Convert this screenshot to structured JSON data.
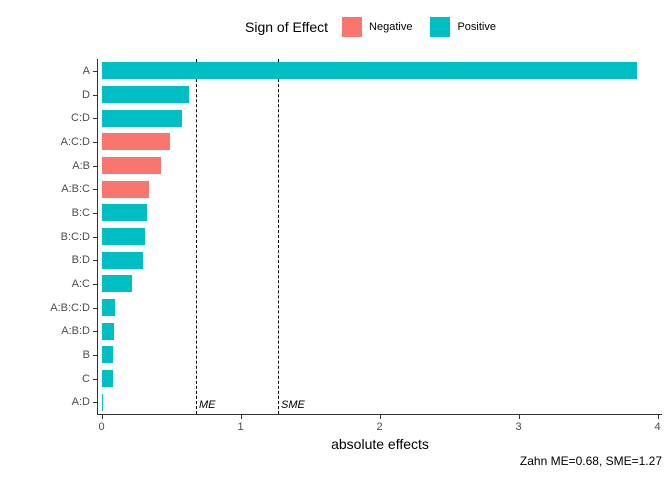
{
  "legend": {
    "title": "Sign of Effect",
    "items": [
      {
        "label": "Negative",
        "color": "#F8766D"
      },
      {
        "label": "Positive",
        "color": "#00BFC4"
      }
    ]
  },
  "chart_data": {
    "type": "bar",
    "orientation": "horizontal",
    "title": "",
    "xlabel": "absolute effects",
    "ylabel": "",
    "xlim": [
      0,
      4
    ],
    "x_ticks": [
      0,
      1,
      2,
      3,
      4
    ],
    "grid": false,
    "legend_position": "top",
    "categories": [
      "A",
      "D",
      "C:D",
      "A:C:D",
      "A:B",
      "A:B:C",
      "B:C",
      "B:C:D",
      "B:D",
      "A:C",
      "A:B:C:D",
      "A:B:D",
      "B",
      "C",
      "A:D"
    ],
    "series": [
      {
        "name": "absolute effect",
        "values": [
          3.85,
          0.63,
          0.58,
          0.49,
          0.43,
          0.34,
          0.33,
          0.31,
          0.3,
          0.22,
          0.1,
          0.09,
          0.08,
          0.08,
          0.01
        ],
        "signs": [
          "Positive",
          "Positive",
          "Positive",
          "Negative",
          "Negative",
          "Negative",
          "Positive",
          "Positive",
          "Positive",
          "Positive",
          "Positive",
          "Positive",
          "Positive",
          "Positive",
          "Positive"
        ]
      }
    ],
    "reference_lines": [
      {
        "label": "ME",
        "x": 0.68
      },
      {
        "label": "SME",
        "x": 1.27
      }
    ]
  },
  "caption": "Zahn ME=0.68, SME=1.27",
  "colors": {
    "negative": "#F8766D",
    "positive": "#00BFC4",
    "axis_text": "#4d4d4d",
    "axis_line": "#333333",
    "reference_line": "#000000"
  }
}
